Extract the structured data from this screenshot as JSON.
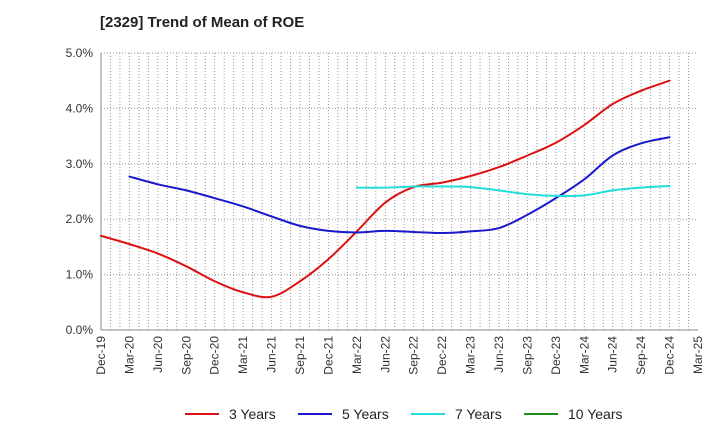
{
  "title": "[2329]  Trend of Mean of ROE",
  "chart_data": {
    "type": "line",
    "title": "[2329]  Trend of Mean of ROE",
    "xlabel": "",
    "ylabel": "",
    "grid": true,
    "legend_position": "bottom",
    "x_ticks": [
      "Dec-19",
      "Mar-20",
      "Jun-20",
      "Sep-20",
      "Dec-20",
      "Mar-21",
      "Jun-21",
      "Sep-21",
      "Dec-21",
      "Mar-22",
      "Jun-22",
      "Sep-22",
      "Dec-22",
      "Mar-23",
      "Jun-23",
      "Sep-23",
      "Dec-23",
      "Mar-24",
      "Jun-24",
      "Sep-24",
      "Dec-24",
      "Mar-25"
    ],
    "y_ticks": [
      "0.0%",
      "1.0%",
      "2.0%",
      "3.0%",
      "4.0%",
      "5.0%"
    ],
    "ylim": [
      0,
      5
    ],
    "y_unit": "%",
    "series": [
      {
        "name": "3 Years",
        "color": "#dd1111",
        "values": [
          1.7,
          1.55,
          1.38,
          1.15,
          0.88,
          0.68,
          0.6,
          0.88,
          1.28,
          1.78,
          2.3,
          2.58,
          2.66,
          2.78,
          2.94,
          3.15,
          3.38,
          3.7,
          4.08,
          4.32,
          4.5,
          null
        ]
      },
      {
        "name": "5 Years",
        "color": "#1a1acc",
        "values": [
          null,
          2.77,
          2.63,
          2.52,
          2.38,
          2.23,
          2.05,
          1.88,
          1.79,
          1.76,
          1.79,
          1.77,
          1.75,
          1.78,
          1.84,
          2.08,
          2.38,
          2.72,
          3.15,
          3.37,
          3.48,
          null
        ]
      },
      {
        "name": "7 Years",
        "color": "#22dddd",
        "values": [
          null,
          null,
          null,
          null,
          null,
          null,
          null,
          null,
          null,
          2.57,
          2.57,
          2.59,
          2.59,
          2.58,
          2.52,
          2.45,
          2.42,
          2.43,
          2.52,
          2.57,
          2.6,
          null
        ]
      },
      {
        "name": "10 Years",
        "color": "#1a8c1a",
        "values": [
          null,
          null,
          null,
          null,
          null,
          null,
          null,
          null,
          null,
          null,
          null,
          null,
          null,
          null,
          null,
          null,
          null,
          null,
          null,
          null,
          null,
          null
        ]
      }
    ]
  }
}
